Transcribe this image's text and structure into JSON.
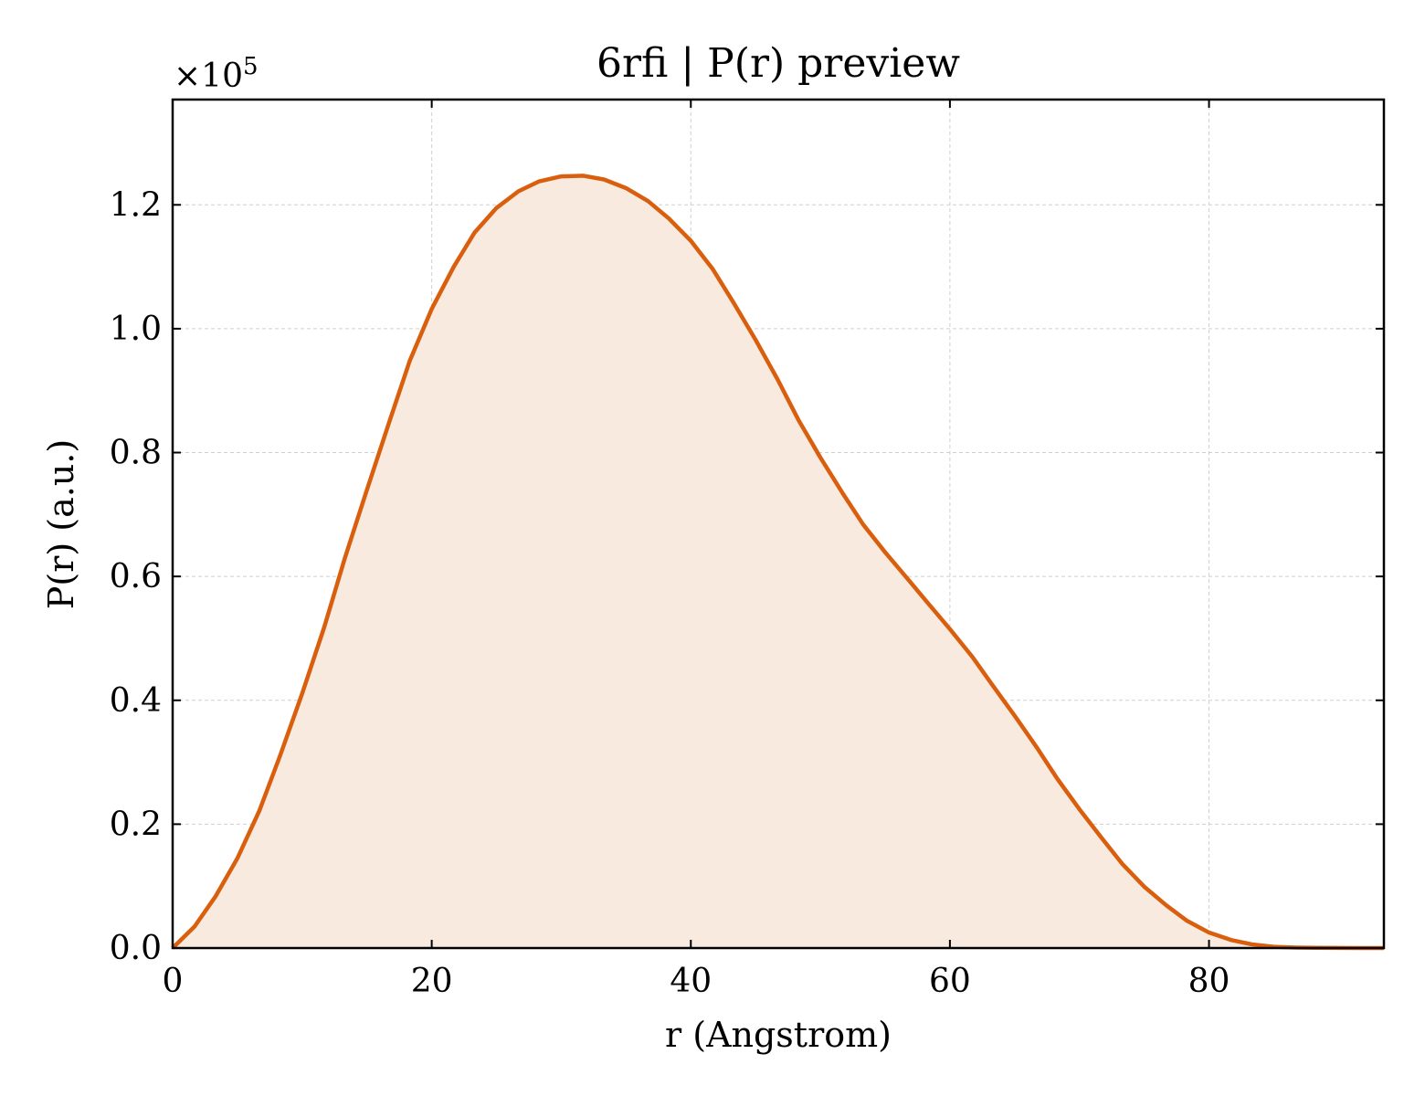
{
  "chart_data": {
    "type": "area",
    "title": "6rfi | P(r) preview",
    "xlabel": "r (Angstrom)",
    "ylabel": "P(r) (a.u.)",
    "y_multiplier_label": "×10",
    "y_multiplier_exponent": "5",
    "xlim": [
      0,
      93.5
    ],
    "ylim": [
      0,
      1.37
    ],
    "x_ticks": [
      0,
      20,
      40,
      60,
      80
    ],
    "x_tick_labels": [
      "0",
      "20",
      "40",
      "60",
      "80"
    ],
    "y_ticks": [
      0,
      0.2,
      0.4,
      0.6,
      0.8,
      1.0,
      1.2
    ],
    "y_tick_labels": [
      "0.0",
      "0.2",
      "0.4",
      "0.6",
      "0.8",
      "1.0",
      "1.2"
    ],
    "grid": true,
    "line_color": "#d95f0e",
    "fill_color": "#f8eadf",
    "series": [
      {
        "x": [
          0,
          1.7,
          3.3,
          5.0,
          6.7,
          8.3,
          10.0,
          11.7,
          13.3,
          15.0,
          16.7,
          18.3,
          20.0,
          21.7,
          23.3,
          25.0,
          26.7,
          28.3,
          30.0,
          31.7,
          33.3,
          35.0,
          36.7,
          38.3,
          40.0,
          41.7,
          43.3,
          45.0,
          46.7,
          48.3,
          50.0,
          51.7,
          53.3,
          55.0,
          56.7,
          58.3,
          60.0,
          61.7,
          63.3,
          65.0,
          66.7,
          68.3,
          70.0,
          71.7,
          73.3,
          75.0,
          76.7,
          78.3,
          80.0,
          81.7,
          83.3,
          85.0,
          86.7,
          88.3,
          90.0,
          91.7,
          93.5
        ],
        "y": [
          0.0,
          0.035,
          0.083,
          0.145,
          0.222,
          0.311,
          0.411,
          0.518,
          0.63,
          0.74,
          0.848,
          0.948,
          1.032,
          1.1,
          1.155,
          1.195,
          1.222,
          1.238,
          1.246,
          1.247,
          1.241,
          1.227,
          1.206,
          1.178,
          1.142,
          1.096,
          1.042,
          0.982,
          0.918,
          0.853,
          0.792,
          0.735,
          0.684,
          0.639,
          0.597,
          0.557,
          0.515,
          0.471,
          0.424,
          0.375,
          0.324,
          0.273,
          0.224,
          0.178,
          0.136,
          0.099,
          0.069,
          0.044,
          0.025,
          0.013,
          0.006,
          0.002,
          0.0008,
          0.0003,
          0.0001,
          5e-05,
          0.0
        ]
      }
    ]
  }
}
